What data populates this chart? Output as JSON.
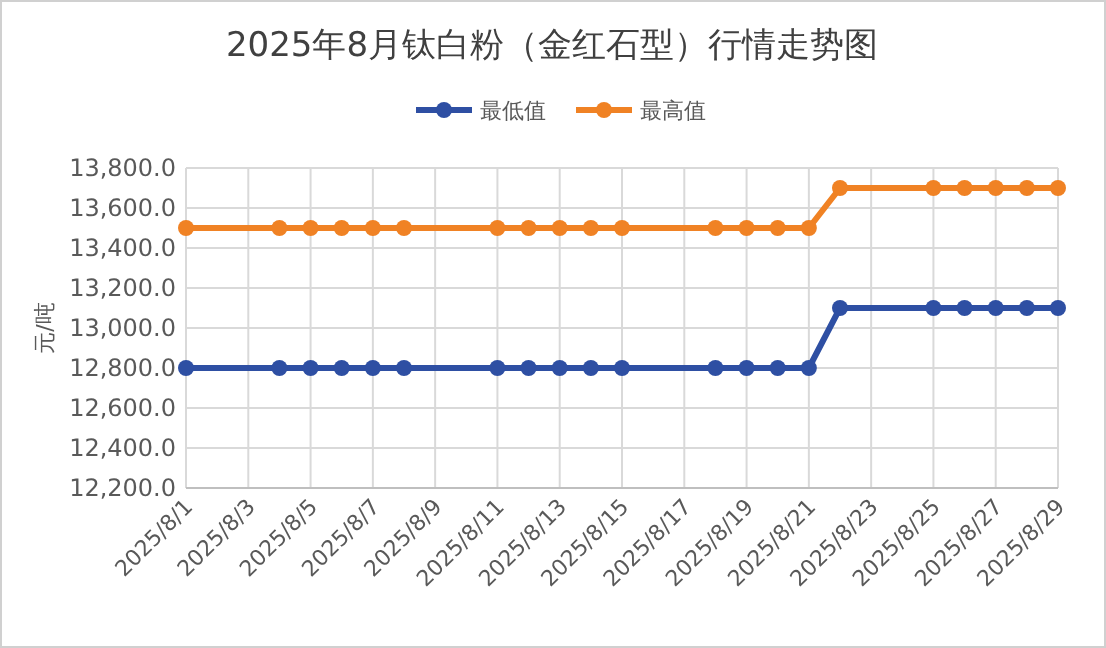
{
  "chart_data": {
    "type": "line",
    "title": "2025年8月钛白粉（金红石型）行情走势图",
    "ylabel": "元/吨",
    "x": [
      "2025-08-01",
      "2025-08-04",
      "2025-08-05",
      "2025-08-06",
      "2025-08-07",
      "2025-08-08",
      "2025-08-11",
      "2025-08-12",
      "2025-08-13",
      "2025-08-14",
      "2025-08-15",
      "2025-08-18",
      "2025-08-19",
      "2025-08-20",
      "2025-08-21",
      "2025-08-22",
      "2025-08-25",
      "2025-08-26",
      "2025-08-27",
      "2025-08-28",
      "2025-08-29"
    ],
    "series": [
      {
        "name": "最低值",
        "color": "#2e4fa3",
        "values": [
          12800,
          12800,
          12800,
          12800,
          12800,
          12800,
          12800,
          12800,
          12800,
          12800,
          12800,
          12800,
          12800,
          12800,
          12800,
          13100,
          13100,
          13100,
          13100,
          13100,
          13100
        ]
      },
      {
        "name": "最高值",
        "color": "#f08224",
        "values": [
          13500,
          13500,
          13500,
          13500,
          13500,
          13500,
          13500,
          13500,
          13500,
          13500,
          13500,
          13500,
          13500,
          13500,
          13500,
          13700,
          13700,
          13700,
          13700,
          13700,
          13700
        ]
      }
    ],
    "xlim": [
      "2025-08-01",
      "2025-08-29"
    ],
    "xticks": [
      {
        "value": "2025-08-01",
        "label": "2025/8/1"
      },
      {
        "value": "2025-08-03",
        "label": "2025/8/3"
      },
      {
        "value": "2025-08-05",
        "label": "2025/8/5"
      },
      {
        "value": "2025-08-07",
        "label": "2025/8/7"
      },
      {
        "value": "2025-08-09",
        "label": "2025/8/9"
      },
      {
        "value": "2025-08-11",
        "label": "2025/8/11"
      },
      {
        "value": "2025-08-13",
        "label": "2025/8/13"
      },
      {
        "value": "2025-08-15",
        "label": "2025/8/15"
      },
      {
        "value": "2025-08-17",
        "label": "2025/8/17"
      },
      {
        "value": "2025-08-19",
        "label": "2025/8/19"
      },
      {
        "value": "2025-08-21",
        "label": "2025/8/21"
      },
      {
        "value": "2025-08-23",
        "label": "2025/8/23"
      },
      {
        "value": "2025-08-25",
        "label": "2025/8/25"
      },
      {
        "value": "2025-08-27",
        "label": "2025/8/27"
      },
      {
        "value": "2025-08-29",
        "label": "2025/8/29"
      }
    ],
    "ylim": [
      12200,
      13800
    ],
    "yticks": [
      {
        "value": 12200,
        "label": "12,200.0"
      },
      {
        "value": 12400,
        "label": "12,400.0"
      },
      {
        "value": 12600,
        "label": "12,600.0"
      },
      {
        "value": 12800,
        "label": "12,800.0"
      },
      {
        "value": 13000,
        "label": "13,000.0"
      },
      {
        "value": 13200,
        "label": "13,200.0"
      },
      {
        "value": 13400,
        "label": "13,400.0"
      },
      {
        "value": 13600,
        "label": "13,600.0"
      },
      {
        "value": 13800,
        "label": "13,800.0"
      }
    ],
    "grid": true,
    "legend": "top",
    "marker": "circle",
    "line_style": "solid"
  }
}
